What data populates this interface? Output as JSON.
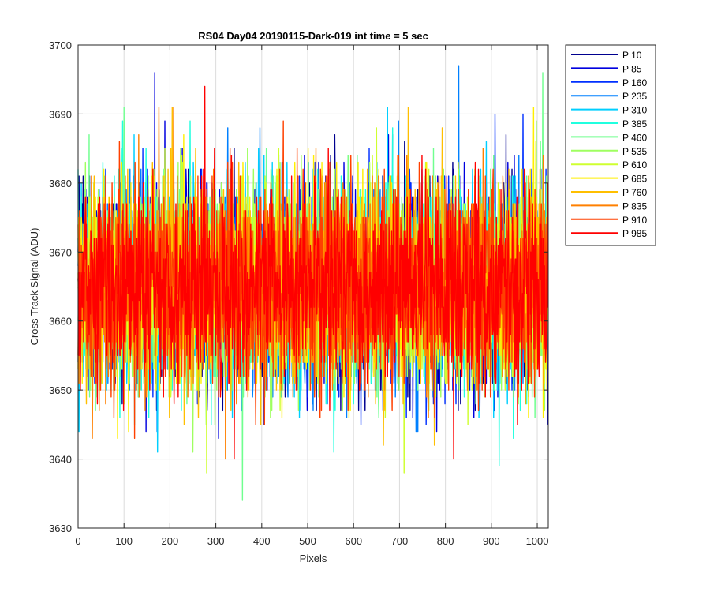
{
  "chart_data": {
    "type": "line",
    "title": "RS04 Day04 20190115-Dark-019 int time = 5 sec",
    "xlabel": "Pixels",
    "ylabel": "Cross Track Signal (ADU)",
    "xlim": [
      0,
      1024
    ],
    "ylim": [
      3630,
      3700
    ],
    "xticks": [
      0,
      100,
      200,
      300,
      400,
      500,
      600,
      700,
      800,
      900,
      1000
    ],
    "yticks": [
      3630,
      3640,
      3650,
      3660,
      3670,
      3680,
      3690,
      3700
    ],
    "grid": true,
    "legend_position": "outside-top-right",
    "num_points": 1024,
    "x_step": 1,
    "signal_mean": 3665,
    "signal_std": 7,
    "series": [
      {
        "name": "P 10",
        "color": "#00008f",
        "min": 3647,
        "max": 3687
      },
      {
        "name": "P 85",
        "color": "#0000df",
        "min": 3643,
        "max": 3696
      },
      {
        "name": "P 160",
        "color": "#0030ff",
        "min": 3645,
        "max": 3690
      },
      {
        "name": "P 235",
        "color": "#0080ff",
        "min": 3644,
        "max": 3697
      },
      {
        "name": "P 310",
        "color": "#00cfff",
        "min": 3641,
        "max": 3691
      },
      {
        "name": "P 385",
        "color": "#20ffdf",
        "min": 3639,
        "max": 3689
      },
      {
        "name": "P 460",
        "color": "#70ff8f",
        "min": 3634,
        "max": 3696
      },
      {
        "name": "P 535",
        "color": "#9fff60",
        "min": 3641,
        "max": 3689
      },
      {
        "name": "P 610",
        "color": "#cfff30",
        "min": 3638,
        "max": 3688
      },
      {
        "name": "P 685",
        "color": "#ffef00",
        "min": 3643,
        "max": 3691
      },
      {
        "name": "P 760",
        "color": "#ffbf00",
        "min": 3642,
        "max": 3691
      },
      {
        "name": "P 835",
        "color": "#ff8000",
        "min": 3640,
        "max": 3691
      },
      {
        "name": "P 910",
        "color": "#ff4000",
        "min": 3643,
        "max": 3689
      },
      {
        "name": "P 985",
        "color": "#ff0000",
        "min": 3640,
        "max": 3694
      }
    ]
  }
}
